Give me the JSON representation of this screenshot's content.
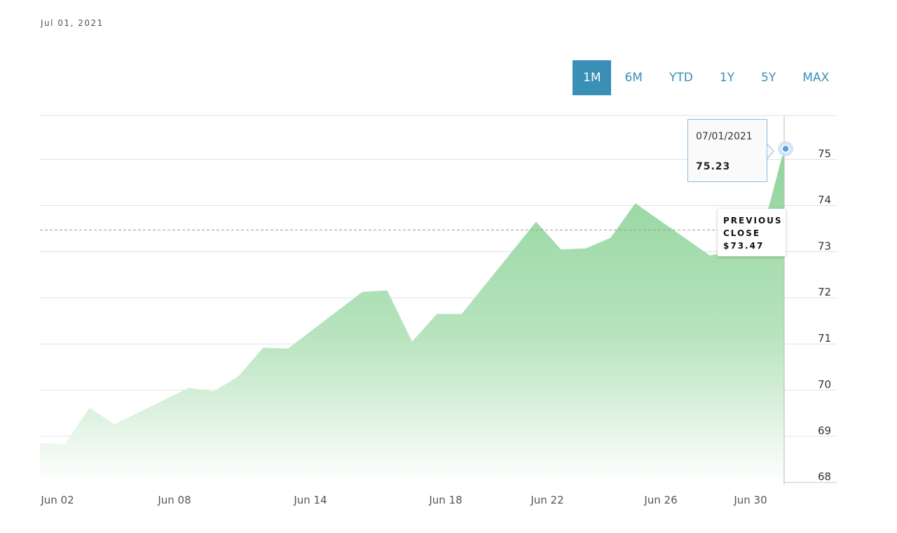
{
  "header": {
    "date": "Jul 01, 2021"
  },
  "range_buttons": [
    "1M",
    "6M",
    "YTD",
    "1Y",
    "5Y",
    "MAX"
  ],
  "active_range": "1M",
  "tooltip": {
    "date": "07/01/2021",
    "value": "75.23"
  },
  "previous_close": {
    "line1": "PREVIOUS",
    "line2": "CLOSE",
    "value": "$73.47"
  },
  "colors": {
    "accent": "#3a8fb7",
    "area": "#8fd49a",
    "grid": "#e0e0e0"
  },
  "chart_data": {
    "type": "area",
    "x_ticks": [
      "Jun 02",
      "Jun 08",
      "Jun 14",
      "Jun 18",
      "Jun 22",
      "Jun 26",
      "Jun 30"
    ],
    "y_ticks": [
      68,
      69,
      70,
      71,
      72,
      73,
      74,
      75
    ],
    "ylim": [
      67.95,
      75.95
    ],
    "previous_close": 73.47,
    "series": [
      {
        "values": [
          [
            "2021-06-01",
            68.85
          ],
          [
            "2021-06-02",
            68.83
          ],
          [
            "2021-06-03",
            69.62
          ],
          [
            "2021-06-04",
            69.26
          ],
          [
            "2021-06-07",
            70.05
          ],
          [
            "2021-06-08",
            69.97
          ],
          [
            "2021-06-09",
            70.3
          ],
          [
            "2021-06-10",
            70.92
          ],
          [
            "2021-06-11",
            70.9
          ],
          [
            "2021-06-14",
            72.13
          ],
          [
            "2021-06-15",
            72.16
          ],
          [
            "2021-06-16",
            71.05
          ],
          [
            "2021-06-17",
            71.65
          ],
          [
            "2021-06-18",
            71.65
          ],
          [
            "2021-06-21",
            73.65
          ],
          [
            "2021-06-22",
            73.05
          ],
          [
            "2021-06-23",
            73.07
          ],
          [
            "2021-06-24",
            73.3
          ],
          [
            "2021-06-25",
            74.05
          ],
          [
            "2021-06-28",
            72.92
          ],
          [
            "2021-06-29",
            73.0
          ],
          [
            "2021-06-30",
            73.2
          ],
          [
            "2021-07-01",
            75.23
          ]
        ]
      }
    ]
  }
}
